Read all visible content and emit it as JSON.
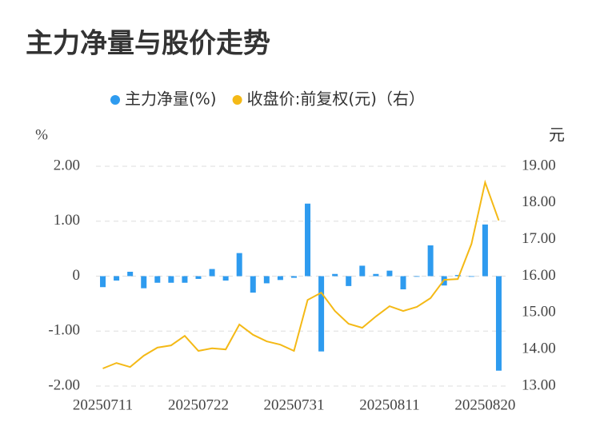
{
  "chart_data": {
    "type": "bar-line",
    "title": "主力净量与股价走势",
    "categories": [
      "20250711",
      null,
      null,
      null,
      null,
      null,
      null,
      "20250722",
      null,
      null,
      null,
      null,
      null,
      null,
      "20250731",
      null,
      null,
      null,
      null,
      null,
      null,
      "20250811",
      null,
      null,
      null,
      null,
      null,
      null,
      "20250820",
      null
    ],
    "y_unit": "%",
    "y2_unit": "元",
    "series": [
      {
        "name": "主力净量(%)",
        "type": "bar",
        "color": "#2e9bef",
        "values": [
          -0.2,
          -0.08,
          0.08,
          -0.22,
          -0.12,
          -0.12,
          -0.12,
          -0.05,
          0.13,
          -0.08,
          0.42,
          -0.3,
          -0.13,
          -0.07,
          -0.03,
          1.32,
          -1.37,
          0.04,
          -0.18,
          0.19,
          0.04,
          0.1,
          -0.24,
          -0.01,
          0.56,
          -0.17,
          0.02,
          -0.01,
          0.94,
          -1.72
        ]
      },
      {
        "name": "收盘价:前复权(元)（右）",
        "type": "line",
        "axis": "y2",
        "color": "#f4b916",
        "values": [
          13.48,
          13.63,
          13.52,
          13.83,
          14.05,
          14.11,
          14.37,
          13.96,
          14.03,
          14.0,
          14.68,
          14.4,
          14.22,
          14.13,
          13.96,
          15.35,
          15.55,
          15.05,
          14.7,
          14.59,
          14.9,
          15.18,
          15.05,
          15.16,
          15.4,
          15.9,
          15.92,
          16.88,
          18.56,
          17.52
        ]
      }
    ],
    "ylim": [
      -2,
      2
    ],
    "yticks": [
      {
        "value": 2,
        "label": "2.00"
      },
      {
        "value": 1,
        "label": "1.00"
      },
      0,
      {
        "value": -1,
        "label": "-1.00"
      },
      {
        "value": -2,
        "label": "-2.00"
      }
    ],
    "y2lim": [
      13,
      19
    ],
    "y2ticks": [
      {
        "value": 19,
        "label": "19.00"
      },
      {
        "value": 18,
        "label": "18.00"
      },
      {
        "value": 17,
        "label": "17.00"
      },
      {
        "value": 16,
        "label": "16.00"
      },
      {
        "value": 15,
        "label": "15.00"
      },
      {
        "value": 14,
        "label": "14.00"
      },
      {
        "value": 13,
        "label": "13.00"
      }
    ],
    "grid": true
  }
}
